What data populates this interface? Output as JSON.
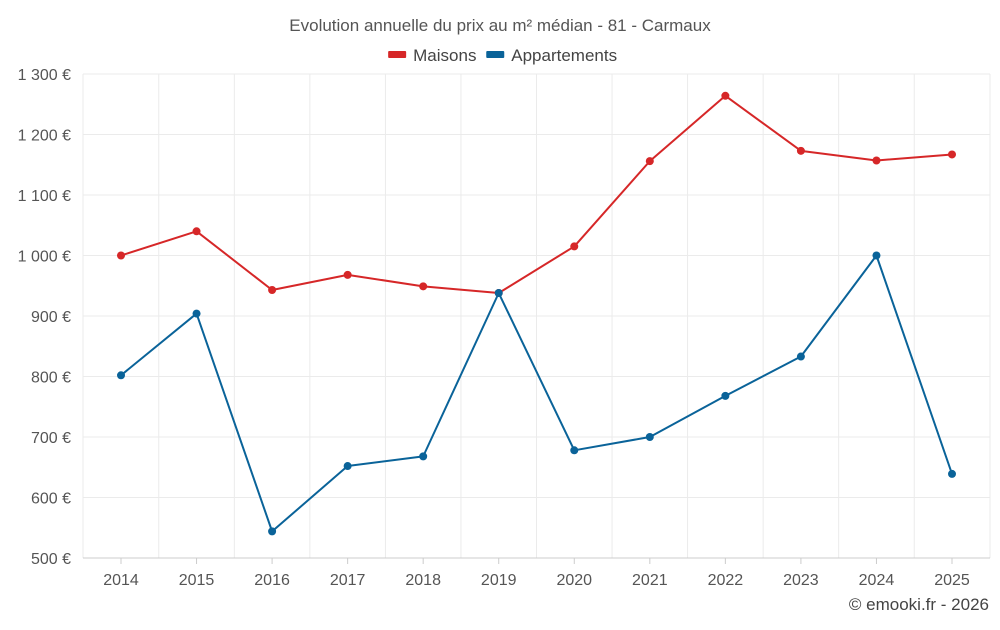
{
  "chart_data": {
    "type": "line",
    "title": "Evolution annuelle du prix au m² médian - 81 - Carmaux",
    "categories": [
      "2014",
      "2015",
      "2016",
      "2017",
      "2018",
      "2019",
      "2020",
      "2021",
      "2022",
      "2023",
      "2024",
      "2025"
    ],
    "series": [
      {
        "name": "Maisons",
        "color": "#d62728",
        "values": [
          1000,
          1040,
          943,
          968,
          949,
          938,
          1015,
          1156,
          1264,
          1173,
          1157,
          1167
        ]
      },
      {
        "name": "Appartements",
        "color": "#0a6399",
        "values": [
          802,
          904,
          544,
          652,
          668,
          938,
          678,
          700,
          768,
          833,
          1000,
          639
        ]
      }
    ],
    "ylim": [
      500,
      1300
    ],
    "yticks": [
      500,
      600,
      700,
      800,
      900,
      1000,
      1100,
      1200,
      1300
    ],
    "ytick_labels": [
      "500 €",
      "600 €",
      "700 €",
      "800 €",
      "900 €",
      "1 000 €",
      "1 100 €",
      "1 200 €",
      "1 300 €"
    ],
    "xlabel": "",
    "ylabel": "",
    "grid": true,
    "legend": "top-center"
  },
  "credit": "© emooki.fr - 2026"
}
